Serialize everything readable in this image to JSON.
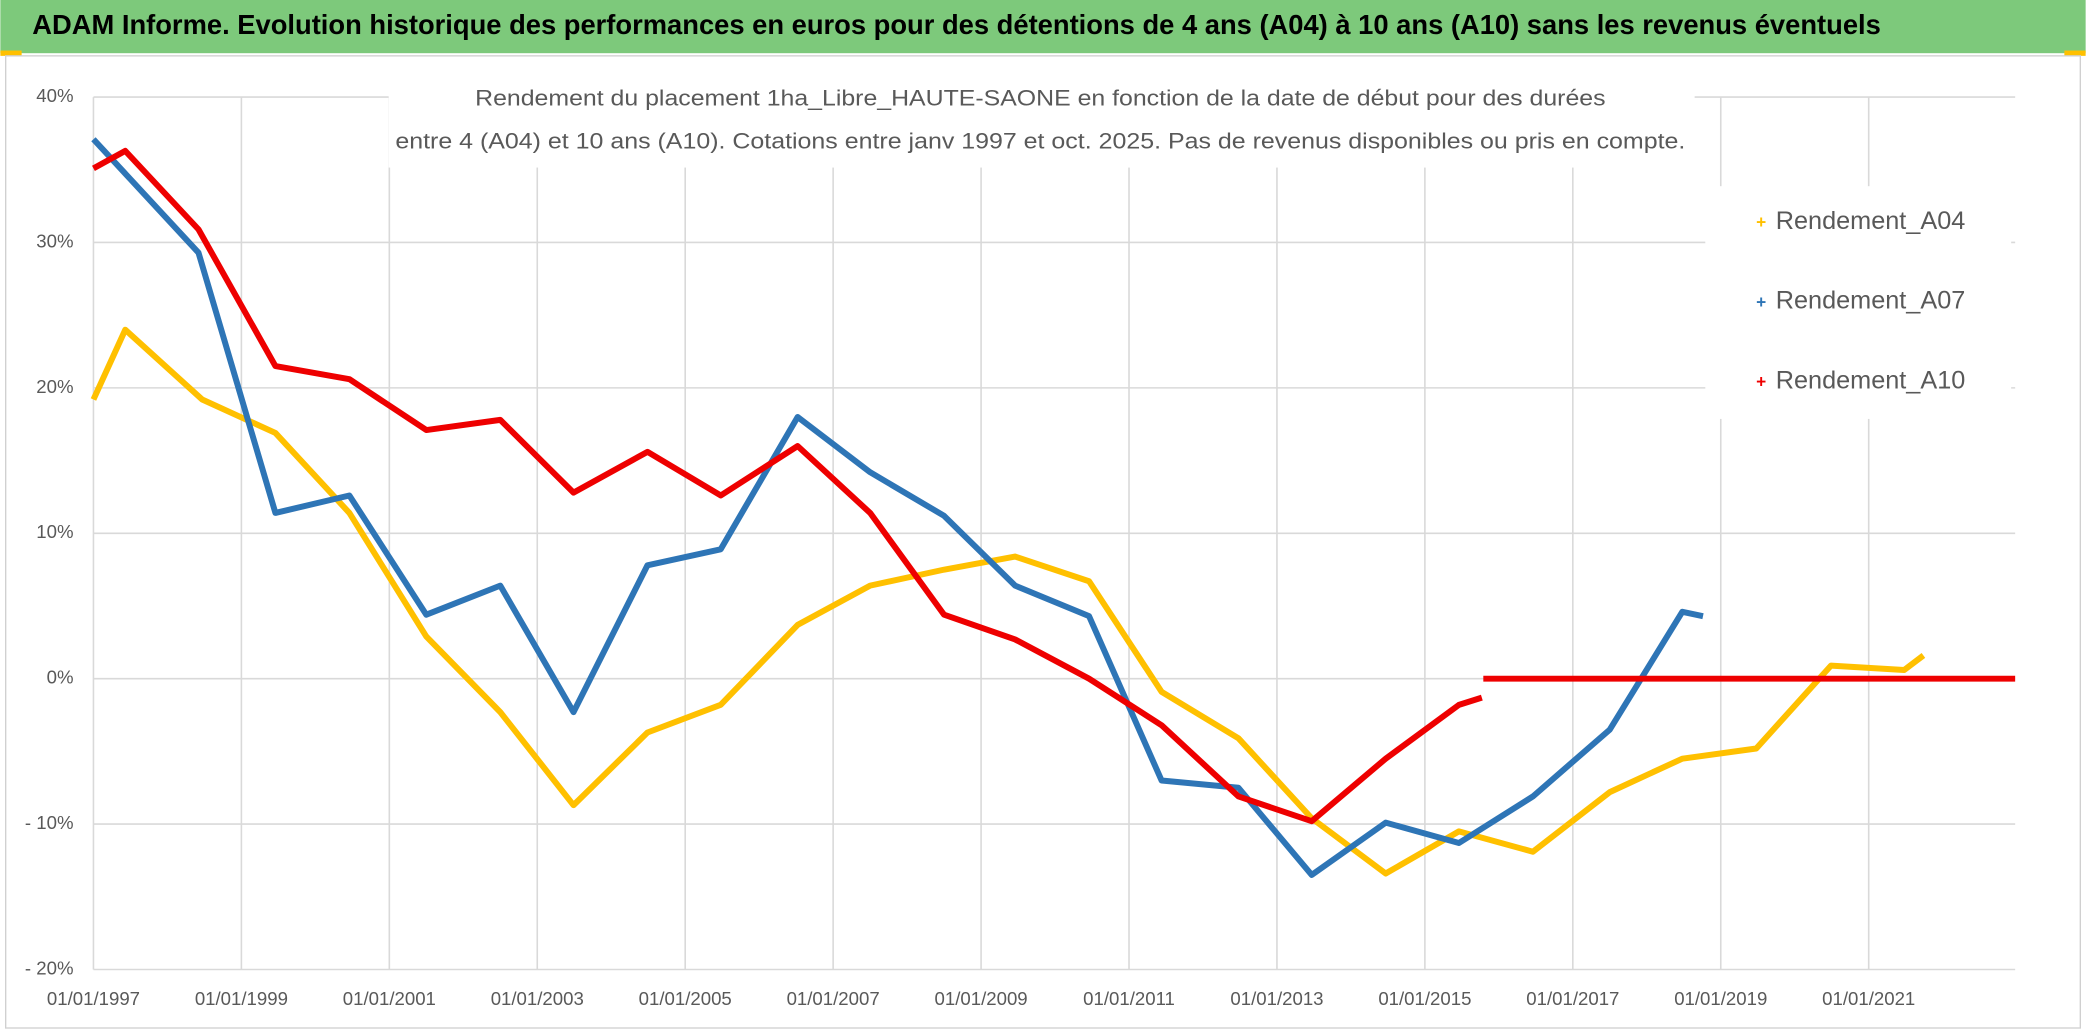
{
  "header": {
    "title": "ADAM Informe. Evolution historique des performances en euros pour des détentions de 4 ans (A04) à 10 ans (A10) sans les revenus éventuels"
  },
  "chart_data": {
    "type": "line",
    "title": [
      "Rendement du placement 1ha_Libre_HAUTE-SAONE en fonction de la date de début pour des durées",
      "entre 4 (A04) et 10 ans (A10). Cotations entre janv 1997 et oct. 2025. Pas de revenus disponibles ou pris en compte."
    ],
    "xlim": [
      1997,
      2022.98
    ],
    "xticks": [
      {
        "value": 1997,
        "label": "01/01/1997"
      },
      {
        "value": 1999,
        "label": "01/01/1999"
      },
      {
        "value": 2001,
        "label": "01/01/2001"
      },
      {
        "value": 2003,
        "label": "01/01/2003"
      },
      {
        "value": 2005,
        "label": "01/01/2005"
      },
      {
        "value": 2007,
        "label": "01/01/2007"
      },
      {
        "value": 2009,
        "label": "01/01/2009"
      },
      {
        "value": 2011,
        "label": "01/01/2011"
      },
      {
        "value": 2013,
        "label": "01/01/2013"
      },
      {
        "value": 2015,
        "label": "01/01/2015"
      },
      {
        "value": 2017,
        "label": "01/01/2017"
      },
      {
        "value": 2019,
        "label": "01/01/2019"
      },
      {
        "value": 2021,
        "label": "01/01/2021"
      }
    ],
    "ylim": [
      -20,
      40
    ],
    "yticks": [
      {
        "value": 40,
        "label": "40%"
      },
      {
        "value": 30,
        "label": "30%"
      },
      {
        "value": 20,
        "label": "20%"
      },
      {
        "value": 10,
        "label": "10%"
      },
      {
        "value": 0,
        "label": "0%"
      },
      {
        "value": -10,
        "label": "- 10%"
      },
      {
        "value": -20,
        "label": "- 20%"
      }
    ],
    "grid": true,
    "legend": "upper right",
    "series": [
      {
        "name": "Rendement_A04",
        "color": "#ffc000",
        "x": [
          1997.0,
          1997.43,
          1998.47,
          1999.46,
          2000.46,
          2001.5,
          2002.5,
          2003.49,
          2004.49,
          2005.48,
          2006.52,
          2007.5,
          2008.5,
          2009.46,
          2010.46,
          2011.44,
          2012.48,
          2013.47,
          2014.47,
          2015.46,
          2016.46,
          2017.5,
          2018.48,
          2019.48,
          2020.49,
          2021.48,
          2021.74
        ],
        "values": [
          19.2,
          24.0,
          19.2,
          16.9,
          11.4,
          2.9,
          -2.3,
          -8.7,
          -3.7,
          -1.8,
          3.7,
          6.4,
          7.5,
          8.4,
          6.7,
          -0.9,
          -4.1,
          -9.6,
          -13.4,
          -10.5,
          -11.9,
          -7.8,
          -5.5,
          -4.8,
          0.9,
          0.6,
          1.6
        ]
      },
      {
        "name": "Rendement_A07",
        "color": "#2e75b6",
        "x": [
          1997.0,
          1998.42,
          1999.46,
          2000.46,
          2001.5,
          2002.5,
          2003.49,
          2004.49,
          2005.48,
          2006.52,
          2007.5,
          2008.5,
          2009.46,
          2010.46,
          2011.44,
          2012.48,
          2013.47,
          2014.47,
          2015.46,
          2016.46,
          2017.5,
          2018.48,
          2018.76
        ],
        "values": [
          37.1,
          29.3,
          11.4,
          12.6,
          4.4,
          6.4,
          -2.3,
          7.8,
          8.9,
          18.0,
          14.2,
          11.2,
          6.4,
          4.3,
          -7.0,
          -7.5,
          -13.5,
          -9.9,
          -11.3,
          -8.1,
          -3.5,
          4.6,
          4.3
        ]
      },
      {
        "name": "Rendement_A10",
        "color": "#ee0000",
        "x": [
          1997.0,
          1997.43,
          1998.42,
          1999.46,
          2000.46,
          2001.5,
          2002.5,
          2003.49,
          2004.49,
          2005.48,
          2006.52,
          2007.5,
          2008.5,
          2009.46,
          2010.46,
          2011.44,
          2012.48,
          2013.47,
          2014.47,
          2015.46,
          2015.77,
          2015.78,
          2015.79,
          2022.98
        ],
        "values": [
          35.1,
          36.3,
          30.9,
          21.5,
          20.6,
          17.1,
          17.8,
          12.8,
          15.6,
          12.6,
          16.0,
          11.4,
          4.4,
          2.7,
          0.0,
          -3.2,
          -8.1,
          -9.8,
          -5.5,
          -1.8,
          -1.3,
          null,
          0,
          0
        ]
      }
    ]
  }
}
